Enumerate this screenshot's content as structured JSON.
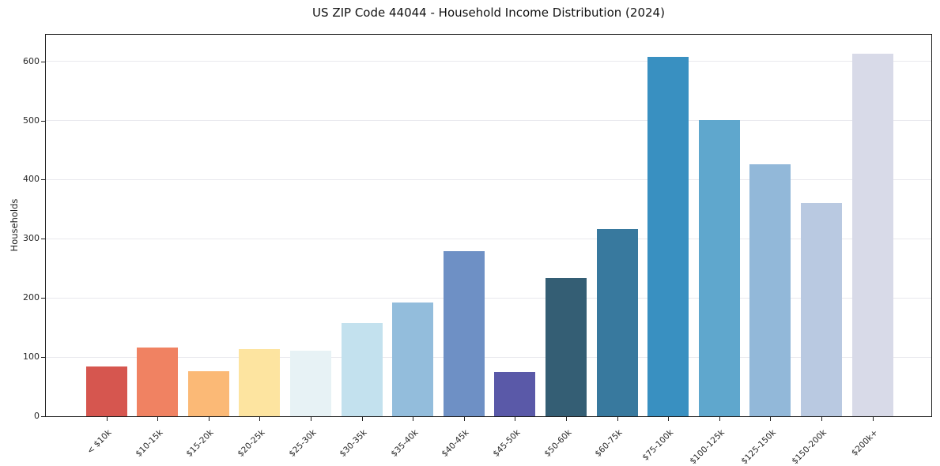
{
  "chart_data": {
    "type": "bar",
    "title": "US ZIP Code 44044 - Household Income Distribution (2024)",
    "ylabel": "Households",
    "xlabel": "",
    "categories": [
      "< $10k",
      "$10-15k",
      "$15-20k",
      "$20-25k",
      "$25-30k",
      "$30-35k",
      "$35-40k",
      "$40-45k",
      "$45-50k",
      "$50-60k",
      "$60-75k",
      "$75-100k",
      "$100-125k",
      "$125-150k",
      "$150-200k",
      "$200k+"
    ],
    "values": [
      84,
      116,
      76,
      113,
      111,
      158,
      192,
      279,
      75,
      234,
      317,
      607,
      501,
      426,
      361,
      613
    ],
    "bar_colors": [
      "#d6564f",
      "#f08262",
      "#fbb976",
      "#fde4a0",
      "#e7f2f5",
      "#c3e1ee",
      "#93bddc",
      "#6e90c5",
      "#5a59a8",
      "#345e74",
      "#38799e",
      "#3990c1",
      "#5fa7cd",
      "#92b8d9",
      "#b9c9e1",
      "#d8dae8"
    ],
    "yticks": [
      0,
      100,
      200,
      300,
      400,
      500,
      600
    ],
    "ylim": [
      0,
      645
    ],
    "grid": "horizontal",
    "legend": "none",
    "background_color": "#ffffff",
    "grid_color": "#e9e9ee",
    "spine_color": "#1f1f1f"
  }
}
